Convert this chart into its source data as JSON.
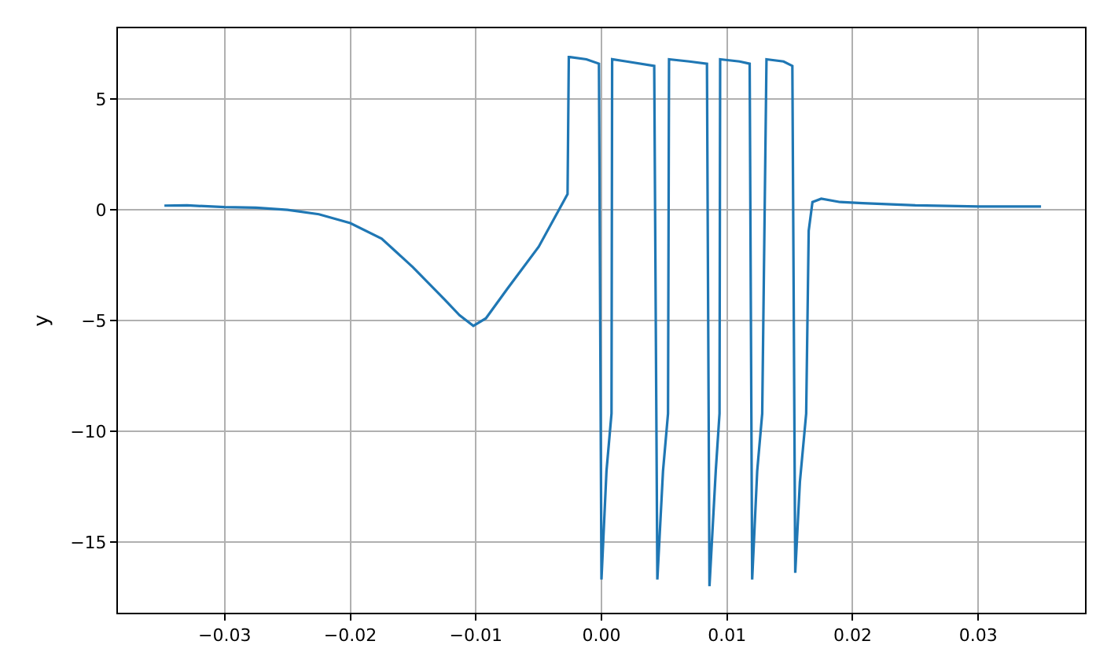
{
  "chart_data": {
    "type": "line",
    "ylabel": "y",
    "grid": true,
    "marker": "none",
    "line_style": "solid",
    "xlim": [
      -0.0385,
      0.0385
    ],
    "ylim": [
      -18.2,
      8.2
    ],
    "xticks": [
      {
        "value": -0.03,
        "label": "−0.03"
      },
      {
        "value": -0.02,
        "label": "−0.02"
      },
      {
        "value": -0.01,
        "label": "−0.01"
      },
      {
        "value": 0.0,
        "label": "0.00"
      },
      {
        "value": 0.01,
        "label": "0.01"
      },
      {
        "value": 0.02,
        "label": "0.02"
      },
      {
        "value": 0.03,
        "label": "0.03"
      }
    ],
    "yticks": [
      {
        "value": -15,
        "label": "−15"
      },
      {
        "value": -10,
        "label": "−10"
      },
      {
        "value": -5,
        "label": "−5"
      },
      0,
      5
    ],
    "series": [
      {
        "color": "#1f77b4",
        "x": [
          -0.0348,
          -0.033,
          -0.03,
          -0.0275,
          -0.025,
          -0.0225,
          -0.02,
          -0.0175,
          -0.015,
          -0.0125,
          -0.0113,
          -0.0102,
          -0.0092,
          -0.0075,
          -0.005,
          -0.0027,
          -0.0026,
          -0.0025,
          -0.0012,
          -0.0002,
          0.0,
          0.0004,
          0.0008,
          0.00085,
          0.002,
          0.0042,
          0.00445,
          0.0049,
          0.0053,
          0.00538,
          0.007,
          0.0084,
          0.0086,
          0.0091,
          0.0094,
          0.00945,
          0.011,
          0.0118,
          0.012,
          0.0124,
          0.0128,
          0.01314,
          0.0145,
          0.0152,
          0.01543,
          0.0158,
          0.0163,
          0.0165,
          0.0168,
          0.0175,
          0.019,
          0.0208,
          0.025,
          0.03,
          0.035
        ],
        "values": [
          0.19,
          0.2,
          0.12,
          0.1,
          0.0,
          -0.2,
          -0.6,
          -1.3,
          -2.6,
          -4.05,
          -4.76,
          -5.24,
          -4.9,
          -3.57,
          -1.67,
          0.71,
          6.9,
          6.9,
          6.8,
          6.6,
          -16.7,
          -11.8,
          -9.2,
          6.8,
          6.7,
          6.5,
          -16.7,
          -11.8,
          -9.2,
          6.8,
          6.7,
          6.6,
          -17.0,
          -11.8,
          -9.2,
          6.8,
          6.7,
          6.6,
          -16.7,
          -11.8,
          -9.2,
          6.8,
          6.7,
          6.5,
          -16.4,
          -12.3,
          -9.2,
          -0.95,
          0.35,
          0.5,
          0.35,
          0.3,
          0.2,
          0.15,
          0.15
        ]
      }
    ]
  }
}
